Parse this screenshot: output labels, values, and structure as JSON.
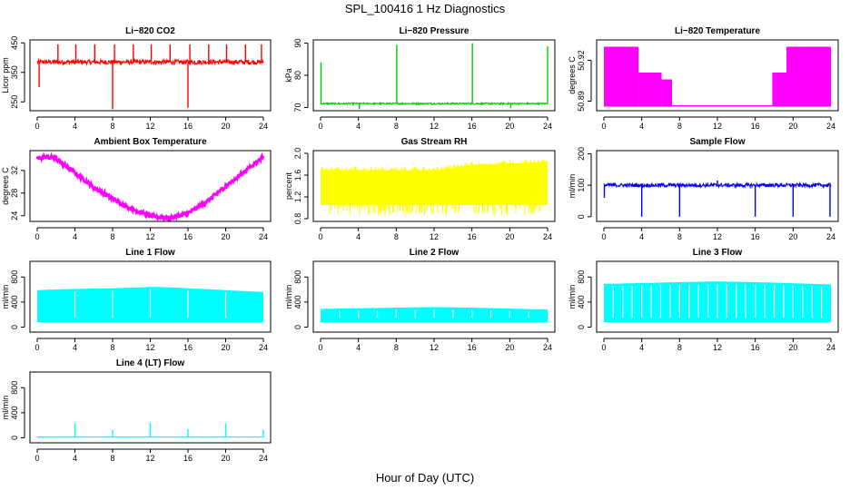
{
  "title": "SPL_100416  1 Hz Diagnostics",
  "xlabel": "Hour of Day (UTC)",
  "chart_data": [
    {
      "id": "co2",
      "type": "line",
      "title": "Li−820 CO2",
      "ylabel": "Licor ppm",
      "color": "#ff0000",
      "xlim": [
        0,
        24
      ],
      "ylim": [
        220,
        460
      ],
      "xticks": [
        "0",
        "4",
        "8",
        "12",
        "16",
        "20",
        "24"
      ],
      "yticks": [
        {
          "v": 250,
          "t": "250"
        },
        {
          "v": 350,
          "t": "350"
        },
        {
          "v": 450,
          "t": "450"
        }
      ],
      "baseline": 385,
      "noise": 8,
      "spikes": [
        [
          0.2,
          300
        ],
        [
          2.2,
          445
        ],
        [
          4.1,
          445
        ],
        [
          6.1,
          445
        ],
        [
          8.0,
          225
        ],
        [
          8.2,
          445
        ],
        [
          10.2,
          445
        ],
        [
          12.1,
          445
        ],
        [
          14.1,
          445
        ],
        [
          16.0,
          230
        ],
        [
          16.2,
          445
        ],
        [
          18.2,
          445
        ],
        [
          20.1,
          445
        ],
        [
          22.1,
          445
        ],
        [
          23.8,
          445
        ]
      ]
    },
    {
      "id": "pressure",
      "type": "line",
      "title": "Li−820 Pressure",
      "ylabel": "kPa",
      "color": "#00cc00",
      "xlim": [
        0,
        24
      ],
      "ylim": [
        69,
        91
      ],
      "xticks": [
        "0",
        "4",
        "8",
        "12",
        "16",
        "20",
        "24"
      ],
      "yticks": [
        {
          "v": 70,
          "t": "70"
        },
        {
          "v": 80,
          "t": "80"
        },
        {
          "v": 90,
          "t": "90"
        }
      ],
      "baseline": 71.2,
      "noise": 0.25,
      "spikes": [
        [
          0.05,
          84
        ],
        [
          4.1,
          69.5
        ],
        [
          8.05,
          89.5
        ],
        [
          16.05,
          90
        ],
        [
          20.1,
          69.8
        ],
        [
          24.0,
          89
        ]
      ]
    },
    {
      "id": "licor_temp",
      "type": "band",
      "title": "Li−820 Temperature",
      "ylabel": "degrees C",
      "color": "#ff00ff",
      "xlim": [
        0,
        24
      ],
      "ylim": [
        50.883,
        50.935
      ],
      "xticks": [
        "0",
        "4",
        "8",
        "12",
        "16",
        "20",
        "24"
      ],
      "yticks": [
        {
          "v": 50.89,
          "t": "50.89"
        },
        {
          "v": 50.92,
          "t": "50.92"
        }
      ],
      "segments": [
        [
          0,
          3.7,
          50.886,
          50.93
        ],
        [
          3.7,
          6.1,
          50.886,
          50.911
        ],
        [
          6.1,
          7.2,
          50.886,
          50.906
        ],
        [
          7.2,
          17.8,
          50.886,
          50.887
        ],
        [
          17.8,
          19.3,
          50.886,
          50.911
        ],
        [
          19.3,
          24,
          50.886,
          50.93
        ]
      ]
    },
    {
      "id": "ambient_temp",
      "type": "line",
      "title": "Ambient Box Temperature",
      "ylabel": "degrees C",
      "color": "#ff00ff",
      "xlim": [
        0,
        24
      ],
      "ylim": [
        23,
        35.5
      ],
      "xticks": [
        "0",
        "4",
        "8",
        "12",
        "16",
        "20",
        "24"
      ],
      "yticks": [
        {
          "v": 24,
          "t": "24"
        },
        {
          "v": 28,
          "t": "28"
        },
        {
          "v": 32,
          "t": "32"
        }
      ],
      "curve": [
        [
          0,
          34.2
        ],
        [
          1,
          34.4
        ],
        [
          2,
          34.0
        ],
        [
          4,
          31.6
        ],
        [
          6,
          29.0
        ],
        [
          8,
          27.0
        ],
        [
          10,
          25.2
        ],
        [
          12,
          24.0
        ],
        [
          14,
          23.6
        ],
        [
          16,
          24.4
        ],
        [
          18,
          26.5
        ],
        [
          20,
          29.2
        ],
        [
          22,
          31.8
        ],
        [
          24,
          34.5
        ]
      ],
      "noise": 0.35
    },
    {
      "id": "rh",
      "type": "noise",
      "title": "Gas Stream RH",
      "ylabel": "percent",
      "color": "#ffff00",
      "xlim": [
        0,
        24
      ],
      "ylim": [
        0.75,
        2.05
      ],
      "xticks": [
        "0",
        "4",
        "8",
        "12",
        "16",
        "20",
        "24"
      ],
      "yticks": [
        {
          "v": 0.8,
          "t": "0.8"
        },
        {
          "v": 1.2,
          "t": "1.2"
        },
        {
          "v": 1.6,
          "t": "1.6"
        },
        {
          "v": 2.0,
          "t": "2.0"
        }
      ],
      "top": [
        [
          0,
          1.75
        ],
        [
          12,
          1.75
        ],
        [
          16,
          1.85
        ],
        [
          24,
          1.9
        ]
      ],
      "bottom": [
        [
          0,
          0.85
        ],
        [
          24,
          0.85
        ]
      ]
    },
    {
      "id": "sample_flow",
      "type": "line",
      "title": "Sample Flow",
      "ylabel": "ml/min",
      "color": "#0000ff",
      "xlim": [
        0,
        24
      ],
      "ylim": [
        -15,
        210
      ],
      "xticks": [
        "0",
        "4",
        "8",
        "12",
        "16",
        "20",
        "24"
      ],
      "yticks": [
        {
          "v": 0,
          "t": "0"
        },
        {
          "v": 100,
          "t": "100"
        },
        {
          "v": 200,
          "t": "200"
        }
      ],
      "baseline": 100,
      "noise": 6,
      "spikes": [
        [
          0.05,
          60
        ],
        [
          4.0,
          0
        ],
        [
          8.0,
          0
        ],
        [
          12.0,
          115
        ],
        [
          16.0,
          0
        ],
        [
          20.0,
          0
        ],
        [
          23.9,
          0
        ]
      ]
    },
    {
      "id": "line1",
      "type": "flowband",
      "title": "Line 1 Flow",
      "ylabel": "ml/min",
      "color": "#00ffff",
      "xlim": [
        0,
        24
      ],
      "ylim": [
        -80,
        1050
      ],
      "xticks": [
        "0",
        "4",
        "8",
        "12",
        "16",
        "20",
        "24"
      ],
      "yticks": [
        {
          "v": 0,
          "t": "0"
        },
        {
          "v": 400,
          "t": "400"
        },
        {
          "v": 800,
          "t": "800"
        }
      ],
      "low": 80,
      "gaps": [
        4,
        8,
        12,
        16,
        20
      ],
      "top": [
        [
          0,
          590
        ],
        [
          4,
          610
        ],
        [
          8,
          620
        ],
        [
          12,
          640
        ],
        [
          13,
          640
        ],
        [
          16,
          620
        ],
        [
          20,
          590
        ],
        [
          24,
          560
        ]
      ],
      "tail": 470
    },
    {
      "id": "line2",
      "type": "flowband",
      "title": "Line 2 Flow",
      "ylabel": "ml/min",
      "color": "#00ffff",
      "xlim": [
        0,
        24
      ],
      "ylim": [
        -80,
        1050
      ],
      "xticks": [
        "0",
        "4",
        "8",
        "12",
        "16",
        "20",
        "24"
      ],
      "yticks": [
        {
          "v": 0,
          "t": "0"
        },
        {
          "v": 400,
          "t": "400"
        },
        {
          "v": 800,
          "t": "800"
        }
      ],
      "low": 80,
      "gaps": [
        4,
        8,
        12,
        16,
        20,
        2,
        6,
        10,
        14,
        18,
        22
      ],
      "top": [
        [
          0,
          290
        ],
        [
          8,
          310
        ],
        [
          12,
          320
        ],
        [
          16,
          310
        ],
        [
          24,
          280
        ]
      ],
      "tail": 200
    },
    {
      "id": "line3",
      "type": "flowband",
      "title": "Line 3 Flow",
      "ylabel": "ml/min",
      "color": "#00ffff",
      "xlim": [
        0,
        24
      ],
      "ylim": [
        -80,
        1050
      ],
      "xticks": [
        "0",
        "4",
        "8",
        "12",
        "16",
        "20",
        "24"
      ],
      "yticks": [
        {
          "v": 0,
          "t": "0"
        },
        {
          "v": 400,
          "t": "400"
        },
        {
          "v": 800,
          "t": "800"
        }
      ],
      "low": 80,
      "gaps": [
        1,
        2,
        3,
        4,
        5,
        6,
        7,
        8,
        9,
        10,
        11,
        12,
        13,
        14,
        15,
        16,
        17,
        18,
        19,
        20,
        21,
        22,
        23
      ],
      "top": [
        [
          0,
          690
        ],
        [
          6,
          710
        ],
        [
          12,
          730
        ],
        [
          18,
          710
        ],
        [
          24,
          680
        ]
      ],
      "tail": 560
    },
    {
      "id": "line4",
      "type": "line",
      "title": "Line 4 (LT) Flow",
      "ylabel": "ml/min",
      "color": "#00ffff",
      "xlim": [
        0,
        24
      ],
      "ylim": [
        -80,
        1050
      ],
      "xticks": [
        "0",
        "4",
        "8",
        "12",
        "16",
        "20",
        "24"
      ],
      "yticks": [
        {
          "v": 0,
          "t": "0"
        },
        {
          "v": 400,
          "t": "400"
        },
        {
          "v": 800,
          "t": "800"
        }
      ],
      "baseline": 12,
      "noise": 4,
      "spikes": [
        [
          4.0,
          230
        ],
        [
          8.0,
          130
        ],
        [
          12.0,
          240
        ],
        [
          16.0,
          140
        ],
        [
          20.0,
          230
        ],
        [
          24.0,
          130
        ]
      ]
    }
  ]
}
